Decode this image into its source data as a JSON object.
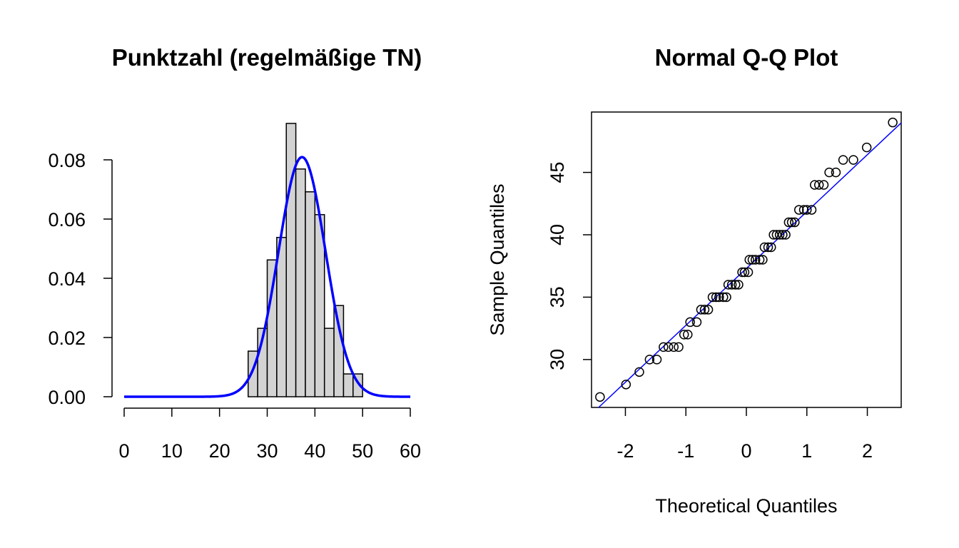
{
  "chart_data": [
    {
      "type": "bar",
      "title": "Punktzahl (regelmäßige TN)",
      "xlabel": "",
      "ylabel": "",
      "xlim": [
        0,
        60
      ],
      "ylim": [
        0,
        0.09
      ],
      "x_ticks": [
        "0",
        "10",
        "20",
        "30",
        "40",
        "50",
        "60"
      ],
      "y_ticks": [
        "0.00",
        "0.02",
        "0.04",
        "0.06",
        "0.08"
      ],
      "bins": [
        {
          "start": 26,
          "end": 28,
          "density": 0.0154
        },
        {
          "start": 28,
          "end": 30,
          "density": 0.0231
        },
        {
          "start": 30,
          "end": 32,
          "density": 0.0462
        },
        {
          "start": 32,
          "end": 34,
          "density": 0.0538
        },
        {
          "start": 34,
          "end": 36,
          "density": 0.0923
        },
        {
          "start": 36,
          "end": 38,
          "density": 0.0769
        },
        {
          "start": 38,
          "end": 40,
          "density": 0.0692
        },
        {
          "start": 40,
          "end": 42,
          "density": 0.0615
        },
        {
          "start": 42,
          "end": 44,
          "density": 0.0231
        },
        {
          "start": 44,
          "end": 46,
          "density": 0.0308
        },
        {
          "start": 46,
          "end": 48,
          "density": 0.0077
        },
        {
          "start": 48,
          "end": 50,
          "density": 0.0077
        }
      ],
      "curve": {
        "distribution": "normal",
        "mean": 37.3,
        "sd": 4.93,
        "x_range": [
          0,
          60
        ]
      },
      "colors": {
        "bar_fill": "#d3d3d3",
        "bar_edge": "#000000",
        "curve": "#0000ff"
      }
    },
    {
      "type": "scatter",
      "title": "Normal Q-Q Plot",
      "xlabel": "Theoretical Quantiles",
      "ylabel": "Sample Quantiles",
      "xlim": [
        -2.56,
        2.56
      ],
      "ylim": [
        26.16,
        49.84
      ],
      "x_ticks": [
        "-2",
        "-1",
        "0",
        "1",
        "2"
      ],
      "y_ticks": [
        "30",
        "35",
        "40",
        "45"
      ],
      "points": [
        [
          -2.42,
          27
        ],
        [
          -1.99,
          28
        ],
        [
          -1.77,
          29
        ],
        [
          -1.6,
          30
        ],
        [
          -1.48,
          30
        ],
        [
          -1.37,
          31
        ],
        [
          -1.29,
          31
        ],
        [
          -1.2,
          31
        ],
        [
          -1.12,
          31
        ],
        [
          -1.03,
          32
        ],
        [
          -0.97,
          32
        ],
        [
          -0.93,
          33
        ],
        [
          -0.82,
          33
        ],
        [
          -0.75,
          34
        ],
        [
          -0.69,
          34
        ],
        [
          -0.63,
          34
        ],
        [
          -0.56,
          35
        ],
        [
          -0.5,
          35
        ],
        [
          -0.45,
          35
        ],
        [
          -0.38,
          35
        ],
        [
          -0.33,
          35
        ],
        [
          -0.3,
          36
        ],
        [
          -0.24,
          36
        ],
        [
          -0.18,
          36
        ],
        [
          -0.13,
          36
        ],
        [
          -0.07,
          37
        ],
        [
          -0.03,
          37
        ],
        [
          0.03,
          37
        ],
        [
          0.05,
          38
        ],
        [
          0.1,
          38
        ],
        [
          0.15,
          38
        ],
        [
          0.22,
          38
        ],
        [
          0.27,
          38
        ],
        [
          0.3,
          39
        ],
        [
          0.36,
          39
        ],
        [
          0.41,
          39
        ],
        [
          0.45,
          40
        ],
        [
          0.5,
          40
        ],
        [
          0.55,
          40
        ],
        [
          0.6,
          40
        ],
        [
          0.65,
          40
        ],
        [
          0.7,
          41
        ],
        [
          0.75,
          41
        ],
        [
          0.8,
          41
        ],
        [
          0.87,
          42
        ],
        [
          0.95,
          42
        ],
        [
          1.0,
          42
        ],
        [
          1.08,
          42
        ],
        [
          1.13,
          44
        ],
        [
          1.2,
          44
        ],
        [
          1.28,
          44
        ],
        [
          1.37,
          45
        ],
        [
          1.48,
          45
        ],
        [
          1.6,
          46
        ],
        [
          1.77,
          46
        ],
        [
          1.99,
          47
        ],
        [
          2.42,
          49
        ]
      ],
      "reference_line": {
        "intercept": 37.3,
        "slope": 4.56
      },
      "colors": {
        "points": "#000000",
        "line": "#0000ff"
      }
    }
  ]
}
